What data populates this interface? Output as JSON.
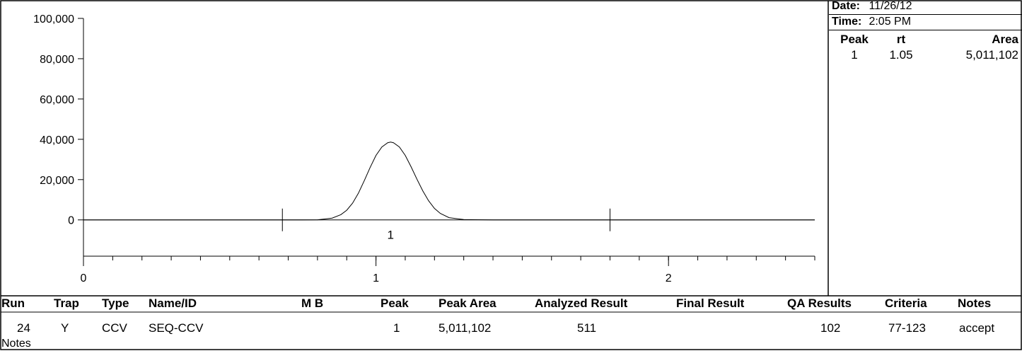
{
  "chart_data": {
    "type": "line",
    "title": "",
    "xlabel": "",
    "ylabel": "",
    "xlim": [
      0,
      2.5
    ],
    "ylim": [
      -18000,
      100000
    ],
    "y_ticks": [
      0,
      20000,
      40000,
      60000,
      80000,
      100000
    ],
    "y_tick_labels": [
      "0",
      "20,000",
      "40,000",
      "60,000",
      "80,000",
      "100,000"
    ],
    "x_ticks": [
      0,
      1,
      2
    ],
    "x_tick_labels": [
      "0",
      "1",
      "2"
    ],
    "x_minor_step": 0.1,
    "grid": false,
    "series": [
      {
        "x": [
          0,
          0.1,
          0.2,
          0.3,
          0.4,
          0.5,
          0.6,
          0.68,
          0.75,
          0.8,
          0.85,
          0.88,
          0.9,
          0.92,
          0.94,
          0.96,
          0.98,
          1.0,
          1.02,
          1.04,
          1.05,
          1.06,
          1.08,
          1.1,
          1.12,
          1.14,
          1.16,
          1.18,
          1.2,
          1.22,
          1.25,
          1.3,
          1.4,
          1.5,
          1.6,
          1.7,
          1.8,
          1.9,
          2.0,
          2.1,
          2.2,
          2.3,
          2.4,
          2.5
        ],
        "y": [
          0,
          0,
          0,
          0,
          0,
          0,
          0,
          0,
          0,
          50,
          900,
          2600,
          4800,
          8300,
          13300,
          19500,
          26000,
          32000,
          36200,
          38300,
          38600,
          38300,
          36200,
          32000,
          26400,
          20200,
          14400,
          9500,
          5700,
          3200,
          1100,
          150,
          0,
          0,
          0,
          0,
          0,
          0,
          0,
          0,
          0,
          0,
          0,
          0
        ]
      }
    ],
    "peak_markers": [
      {
        "x": 0.68,
        "label": ""
      },
      {
        "x": 1.05,
        "label": "1"
      },
      {
        "x": 1.8,
        "label": ""
      }
    ]
  },
  "sidebar": {
    "date_label": "Date:",
    "date_value": "11/26/12",
    "time_label": "Time:",
    "time_value": "2:05 PM",
    "peak_table": {
      "headers": [
        "Peak",
        "rt",
        "Area"
      ],
      "rows": [
        [
          "1",
          "1.05",
          "5,011,102"
        ]
      ]
    }
  },
  "results_table": {
    "headers": [
      "Run",
      "Trap",
      "Type",
      "Name/ID",
      "M B",
      "Peak",
      "Peak Area",
      "Analyzed Result",
      "Final Result",
      "QA Results",
      "Criteria",
      "Notes"
    ],
    "row": [
      "24",
      "Y",
      "CCV",
      "SEQ-CCV",
      "",
      "1",
      "5,011,102",
      "511",
      "",
      "102",
      "77-123",
      "accept"
    ],
    "notes_label": "Notes"
  }
}
